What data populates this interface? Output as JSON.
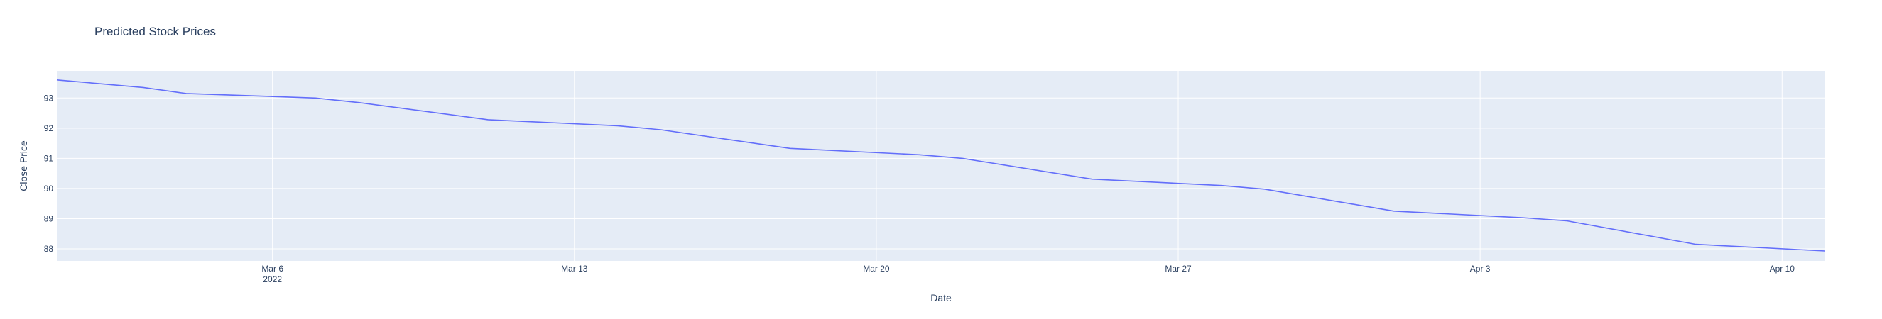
{
  "chart_data": {
    "type": "line",
    "title": "Predicted Stock Prices",
    "xlabel": "Date",
    "ylabel": "Close Price",
    "xlim": [
      "2022-03-01",
      "2022-04-11"
    ],
    "ylim": [
      87.6,
      93.9
    ],
    "x_ticks": [
      {
        "date": "2022-03-06",
        "label": "Mar 6",
        "sublabel": "2022"
      },
      {
        "date": "2022-03-13",
        "label": "Mar 13",
        "sublabel": ""
      },
      {
        "date": "2022-03-20",
        "label": "Mar 20",
        "sublabel": ""
      },
      {
        "date": "2022-03-27",
        "label": "Mar 27",
        "sublabel": ""
      },
      {
        "date": "2022-04-03",
        "label": "Apr 3",
        "sublabel": ""
      },
      {
        "date": "2022-04-10",
        "label": "Apr 10",
        "sublabel": ""
      }
    ],
    "y_ticks": [
      88,
      89,
      90,
      91,
      92,
      93
    ],
    "grid": true,
    "line_color": "#636efa",
    "plot_bg": "#e5ecf6",
    "series": [
      {
        "x": [
          "2022-03-01",
          "2022-03-03",
          "2022-03-04",
          "2022-03-07",
          "2022-03-08",
          "2022-03-11",
          "2022-03-14",
          "2022-03-15",
          "2022-03-18",
          "2022-03-21",
          "2022-03-22",
          "2022-03-25",
          "2022-03-28",
          "2022-03-29",
          "2022-04-01",
          "2022-04-04",
          "2022-04-05",
          "2022-04-08",
          "2022-04-11"
        ],
        "values": [
          93.6,
          93.35,
          93.15,
          93.0,
          92.85,
          92.28,
          92.08,
          91.95,
          91.33,
          91.12,
          91.0,
          90.31,
          90.1,
          89.98,
          89.25,
          89.03,
          88.93,
          88.15,
          87.93
        ]
      }
    ]
  }
}
